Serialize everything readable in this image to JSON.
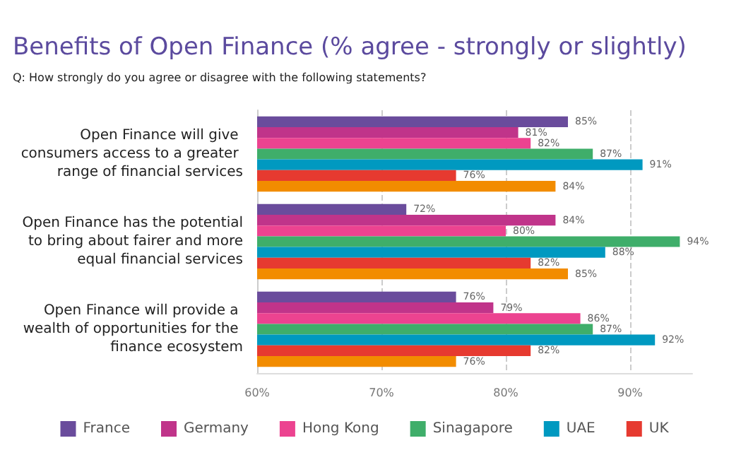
{
  "chart_data": {
    "type": "bar",
    "orientation": "horizontal",
    "title": "Benefits of Open Finance (% agree - strongly or slightly)",
    "subtitle": "Q: How strongly do you agree or disagree with the following statements?",
    "categories": [
      "Open Finance will give consumers access to a greater range of financial services",
      "Open Finance has the potential to bring about fairer and more equal financial services",
      "Open Finance will provide a wealth of opportunities for the finance ecosystem"
    ],
    "series": [
      {
        "name": "France",
        "color": "#6a4c9c",
        "values": [
          85,
          72,
          76
        ],
        "value_labels": [
          "85%",
          "72%",
          "76%"
        ]
      },
      {
        "name": "Germany",
        "color": "#c0348a",
        "values": [
          81,
          84,
          79
        ],
        "value_labels": [
          "81%",
          "84%",
          "79%"
        ]
      },
      {
        "name": "Hong Kong",
        "color": "#ec4390",
        "values": [
          82,
          80,
          86
        ],
        "value_labels": [
          "82%",
          "80%",
          "86%"
        ]
      },
      {
        "name": "Sinagapore",
        "color": "#3fae6a",
        "values": [
          87,
          94,
          87
        ],
        "value_labels": [
          "87%",
          "94%",
          "87%"
        ]
      },
      {
        "name": "UAE",
        "color": "#0099c0",
        "values": [
          91,
          88,
          92
        ],
        "value_labels": [
          "91%",
          "88%",
          "92%"
        ]
      },
      {
        "name": "UK",
        "color": "#e63a30",
        "values": [
          76,
          82,
          82
        ],
        "value_labels": [
          "76%",
          "82%",
          "82%"
        ]
      },
      {
        "color": "#f28c00",
        "values": [
          84,
          85,
          76
        ],
        "value_labels": [
          "84%",
          "85%",
          "76%"
        ]
      }
    ],
    "xlim": [
      60,
      95
    ],
    "xticks": [
      {
        "value": 60,
        "label": "60%"
      },
      {
        "value": 70,
        "label": "70%"
      },
      {
        "value": 80,
        "label": "80%"
      },
      {
        "value": 90,
        "label": "90%"
      }
    ],
    "grid": "x",
    "legend": "bottom"
  }
}
